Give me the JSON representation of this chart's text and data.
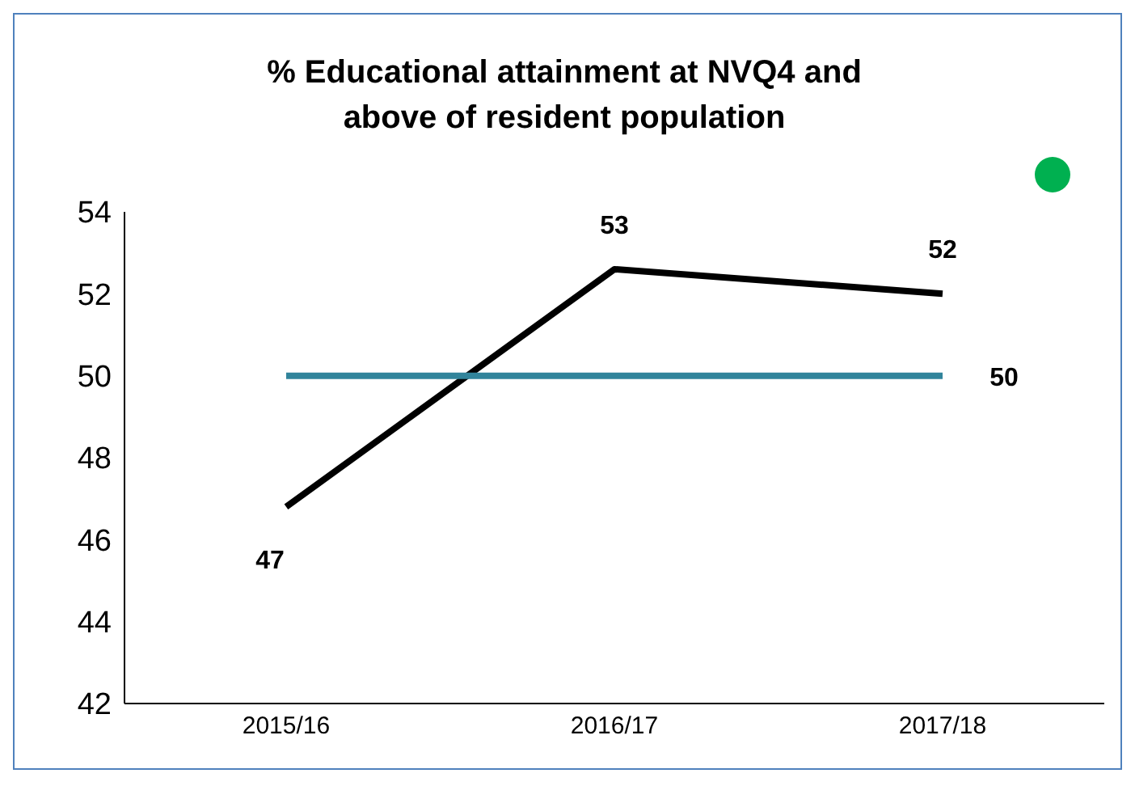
{
  "chart_data": {
    "type": "line",
    "title": "% Educational attainment at NVQ4 and above of resident population",
    "categories": [
      "2015/16",
      "2016/17",
      "2017/18"
    ],
    "series": [
      {
        "color": "#000000",
        "values": [
          46.8,
          52.6,
          52.0
        ],
        "value_labels": [
          "47",
          "53",
          "52"
        ]
      },
      {
        "color": "#31849b",
        "values": [
          50,
          50,
          50
        ],
        "value_labels": [
          null,
          null,
          "50"
        ]
      }
    ],
    "ylim": [
      42,
      54
    ],
    "yticks": [
      42,
      44,
      46,
      48,
      50,
      52,
      54
    ],
    "grid": false,
    "legend": false,
    "marker": "none",
    "line_style": "solid"
  }
}
